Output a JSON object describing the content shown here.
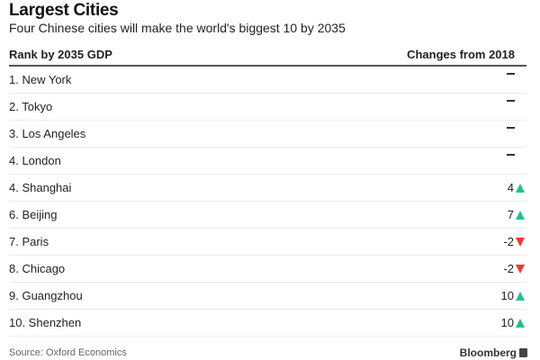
{
  "title": "Largest Cities",
  "subtitle": "Four Chinese cities will make the world's biggest 10 by 2035",
  "table": {
    "headers": [
      "Rank by 2035 GDP",
      "Changes from 2018"
    ],
    "rows": [
      {
        "city": "1. New York",
        "change": "",
        "direction": "none"
      },
      {
        "city": "2. Tokyo",
        "change": "",
        "direction": "none"
      },
      {
        "city": "3. Los Angeles",
        "change": "",
        "direction": "none"
      },
      {
        "city": "4. London",
        "change": "",
        "direction": "none"
      },
      {
        "city": "4. Shanghai",
        "change": "4",
        "direction": "up"
      },
      {
        "city": "6. Beijing",
        "change": "7",
        "direction": "up"
      },
      {
        "city": "7. Paris",
        "change": "-2",
        "direction": "down"
      },
      {
        "city": "8. Chicago",
        "change": "-2",
        "direction": "down"
      },
      {
        "city": "9. Guangzhou",
        "change": "10",
        "direction": "up"
      },
      {
        "city": "10. Shenzhen",
        "change": "10",
        "direction": "up"
      }
    ]
  },
  "colors": {
    "up": "#1fc28a",
    "down": "#f03a2e"
  },
  "source": "Source: Oxford Economics",
  "brand": "Bloomberg"
}
